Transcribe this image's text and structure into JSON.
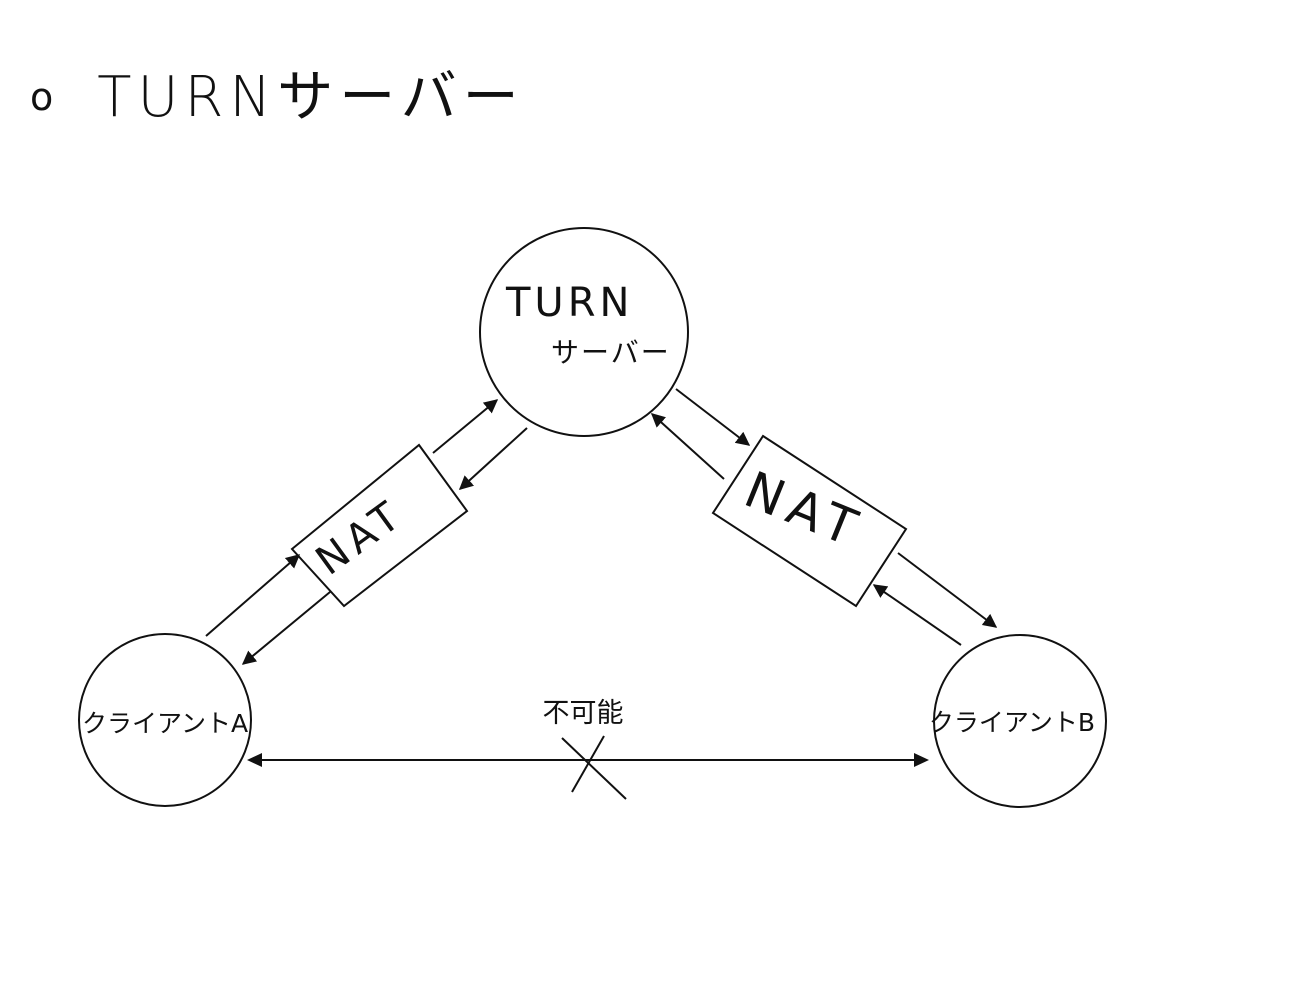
{
  "heading": {
    "bullet": "o",
    "title": "TURNサーバー"
  },
  "nodes": {
    "turn_server": {
      "line1": "TURN",
      "line2": "サーバー"
    },
    "client_a": {
      "label": "クライアントA"
    },
    "client_b": {
      "label": "クライアントB"
    }
  },
  "nat_left": {
    "label": "NAT"
  },
  "nat_right": {
    "label": "NAT"
  },
  "direct_link": {
    "label": "不可能"
  }
}
